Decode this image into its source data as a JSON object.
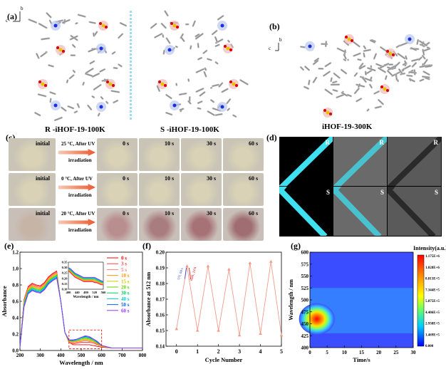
{
  "panels": {
    "a": {
      "label": "(a)",
      "axis_c": "c",
      "axis_b": "b",
      "caption_left": "R -iHOF-19-100K",
      "caption_right": "S -iHOF-19-100K"
    },
    "b": {
      "label": "(b)",
      "axis_c": "c",
      "axis_b": "b",
      "caption": "iHOF-19-300K"
    },
    "c": {
      "label": "(c)",
      "rows": [
        {
          "initial": "initial",
          "cond1": "25 °C, After UV",
          "cond2": "irradiation",
          "times": [
            "0 s",
            "10 s",
            "30 s",
            "60 s"
          ]
        },
        {
          "initial": "initial",
          "cond1": "0 °C, After UV",
          "cond2": "irradiation",
          "times": [
            "0 s",
            "10 s",
            "30 s",
            "60 s"
          ]
        },
        {
          "initial": "initial",
          "cond1": "20 °C, After UV",
          "cond2": "irradiation",
          "times": [
            "0 s",
            "10 s",
            "30 s",
            "60 s"
          ]
        }
      ]
    },
    "d": {
      "label": "(d)",
      "tiles_top": [
        "R",
        "R",
        "R"
      ],
      "tiles_bottom": [
        "S",
        "S",
        "S"
      ]
    },
    "e": {
      "label": "(e)"
    },
    "f": {
      "label": "(f)"
    },
    "g": {
      "label": "(g)"
    }
  },
  "colors": {
    "photo_light": "#d9d2b6",
    "photo_pink": "#b7908f",
    "arrow": "#e8582f",
    "cyan": "#3fe0f2",
    "grey_tile": "#4b4b4b"
  },
  "chart_data": [
    {
      "id": "e",
      "type": "line",
      "xlabel": "Wavelength / nm",
      "ylabel": "Absorbance",
      "xlim": [
        200,
        800
      ],
      "ylim": [
        0.0,
        1.2
      ],
      "xticks": [
        200,
        300,
        400,
        500,
        600,
        700,
        800
      ],
      "yticks": [
        0.0,
        0.2,
        0.4,
        0.6,
        0.8,
        1.0,
        1.2
      ],
      "x": [
        200,
        220,
        240,
        260,
        280,
        300,
        320,
        340,
        360,
        380,
        400,
        420,
        440,
        460,
        480,
        500,
        520,
        540,
        560,
        580,
        600,
        650,
        700,
        750,
        800
      ],
      "series": [
        {
          "name": "0 s",
          "color": "#ff0000",
          "values": [
            0.04,
            0.62,
            0.78,
            0.82,
            0.8,
            0.79,
            0.83,
            0.9,
            0.94,
            0.97,
            0.6,
            0.22,
            0.1,
            0.07,
            0.07,
            0.07,
            0.07,
            0.07,
            0.06,
            0.05,
            0.04,
            0.03,
            0.03,
            0.03,
            0.03
          ]
        },
        {
          "name": "3 s",
          "color": "#ff4040",
          "values": [
            0.04,
            0.61,
            0.77,
            0.81,
            0.79,
            0.78,
            0.82,
            0.89,
            0.93,
            0.96,
            0.6,
            0.22,
            0.1,
            0.08,
            0.09,
            0.1,
            0.1,
            0.1,
            0.09,
            0.07,
            0.05,
            0.03,
            0.03,
            0.03,
            0.03
          ]
        },
        {
          "name": "5 s",
          "color": "#ff7f7f",
          "values": [
            0.04,
            0.6,
            0.76,
            0.8,
            0.78,
            0.77,
            0.81,
            0.88,
            0.92,
            0.95,
            0.6,
            0.22,
            0.11,
            0.09,
            0.1,
            0.11,
            0.12,
            0.11,
            0.1,
            0.08,
            0.05,
            0.03,
            0.03,
            0.03,
            0.03
          ]
        },
        {
          "name": "10 s",
          "color": "#ff9900",
          "values": [
            0.04,
            0.59,
            0.75,
            0.79,
            0.77,
            0.76,
            0.8,
            0.87,
            0.91,
            0.94,
            0.6,
            0.22,
            0.11,
            0.1,
            0.11,
            0.12,
            0.13,
            0.12,
            0.11,
            0.08,
            0.05,
            0.03,
            0.03,
            0.03,
            0.03
          ]
        },
        {
          "name": "15 s",
          "color": "#cccc00",
          "values": [
            0.04,
            0.58,
            0.74,
            0.78,
            0.76,
            0.75,
            0.79,
            0.86,
            0.9,
            0.93,
            0.6,
            0.22,
            0.12,
            0.11,
            0.12,
            0.13,
            0.14,
            0.13,
            0.11,
            0.09,
            0.05,
            0.03,
            0.03,
            0.03,
            0.03
          ]
        },
        {
          "name": "20 s",
          "color": "#66cc00",
          "values": [
            0.04,
            0.57,
            0.73,
            0.77,
            0.75,
            0.74,
            0.78,
            0.85,
            0.89,
            0.92,
            0.6,
            0.22,
            0.12,
            0.11,
            0.12,
            0.14,
            0.15,
            0.14,
            0.12,
            0.09,
            0.06,
            0.03,
            0.03,
            0.03,
            0.03
          ]
        },
        {
          "name": "30 s",
          "color": "#00cc66",
          "values": [
            0.04,
            0.56,
            0.72,
            0.76,
            0.74,
            0.73,
            0.77,
            0.84,
            0.88,
            0.91,
            0.6,
            0.22,
            0.12,
            0.12,
            0.13,
            0.15,
            0.16,
            0.15,
            0.13,
            0.1,
            0.06,
            0.03,
            0.03,
            0.03,
            0.03
          ]
        },
        {
          "name": "40 s",
          "color": "#00cccc",
          "values": [
            0.04,
            0.55,
            0.71,
            0.75,
            0.73,
            0.72,
            0.76,
            0.83,
            0.87,
            0.9,
            0.6,
            0.22,
            0.13,
            0.12,
            0.13,
            0.15,
            0.17,
            0.16,
            0.13,
            0.1,
            0.06,
            0.03,
            0.03,
            0.03,
            0.03
          ]
        },
        {
          "name": "50 s",
          "color": "#0066ff",
          "values": [
            0.04,
            0.54,
            0.7,
            0.74,
            0.72,
            0.71,
            0.75,
            0.82,
            0.86,
            0.89,
            0.6,
            0.22,
            0.13,
            0.12,
            0.14,
            0.16,
            0.17,
            0.16,
            0.14,
            0.1,
            0.06,
            0.03,
            0.03,
            0.03,
            0.03
          ]
        },
        {
          "name": "60 s",
          "color": "#9933ff",
          "values": [
            0.04,
            0.53,
            0.69,
            0.73,
            0.71,
            0.7,
            0.74,
            0.81,
            0.85,
            0.88,
            0.6,
            0.22,
            0.13,
            0.13,
            0.14,
            0.16,
            0.18,
            0.17,
            0.14,
            0.11,
            0.06,
            0.03,
            0.03,
            0.03,
            0.03
          ]
        }
      ],
      "inset": {
        "xlabel": "Wavelength / nm",
        "xlim": [
          400,
          560
        ],
        "ylim": [
          0.1,
          0.35
        ],
        "xticks": [
          400,
          440,
          480,
          520,
          560
        ],
        "yticks": [
          0.1,
          0.15,
          0.2,
          0.25,
          0.3,
          0.35
        ],
        "x": [
          400,
          410,
          420,
          430,
          440,
          450,
          460,
          470,
          480,
          490,
          500,
          510,
          520,
          530,
          540,
          550,
          560
        ],
        "series_end": [
          0.3,
          0.29,
          0.27,
          0.25,
          0.24,
          0.23,
          0.22,
          0.21,
          0.21,
          0.21,
          0.21,
          0.21,
          0.21,
          0.2,
          0.19,
          0.18,
          0.17
        ],
        "series_start": [
          0.27,
          0.25,
          0.23,
          0.21,
          0.2,
          0.19,
          0.18,
          0.17,
          0.17,
          0.17,
          0.17,
          0.17,
          0.16,
          0.16,
          0.15,
          0.14,
          0.14
        ]
      },
      "legend_position": "top-right"
    },
    {
      "id": "f",
      "type": "line",
      "xlabel": "Cycle Number",
      "ylabel": "Absorbance at 512 nm",
      "xlim": [
        -0.5,
        5.0
      ],
      "ylim": [
        0.14,
        0.2
      ],
      "xticks": [
        0,
        1,
        2,
        3,
        4,
        5
      ],
      "yticks": [
        0.14,
        0.15,
        0.16,
        0.17,
        0.18,
        0.19,
        0.2
      ],
      "x": [
        0,
        0.5,
        1,
        1.5,
        2,
        2.5,
        3,
        3.5,
        4,
        4.5,
        5
      ],
      "values": [
        0.151,
        0.191,
        0.15,
        0.191,
        0.15,
        0.189,
        0.147,
        0.193,
        0.148,
        0.194,
        0.147
      ],
      "color": "#f29b8b",
      "annotations": [
        "UV, 60 s",
        "dark, 24 h"
      ]
    },
    {
      "id": "g",
      "type": "heatmap",
      "title": "Intensity(a.u.)",
      "xlabel": "Time/s",
      "ylabel": "Wavelength / nm",
      "xlim": [
        0,
        30
      ],
      "ylim": [
        400,
        600
      ],
      "xticks": [
        0,
        5,
        10,
        15,
        20,
        25,
        30
      ],
      "yticks": [
        400,
        425,
        450,
        475,
        500,
        525,
        550,
        575,
        600
      ],
      "colorbar_ticks": [
        "1.175E+6",
        "1.028E+6",
        "8.813E+5",
        "7.344E+5",
        "5.875E+5",
        "4.406E+5",
        "2.938E+5",
        "1.469E+5",
        "0.000"
      ],
      "peak": {
        "time": 2,
        "wavelength": 460,
        "value": 1175000
      }
    }
  ]
}
